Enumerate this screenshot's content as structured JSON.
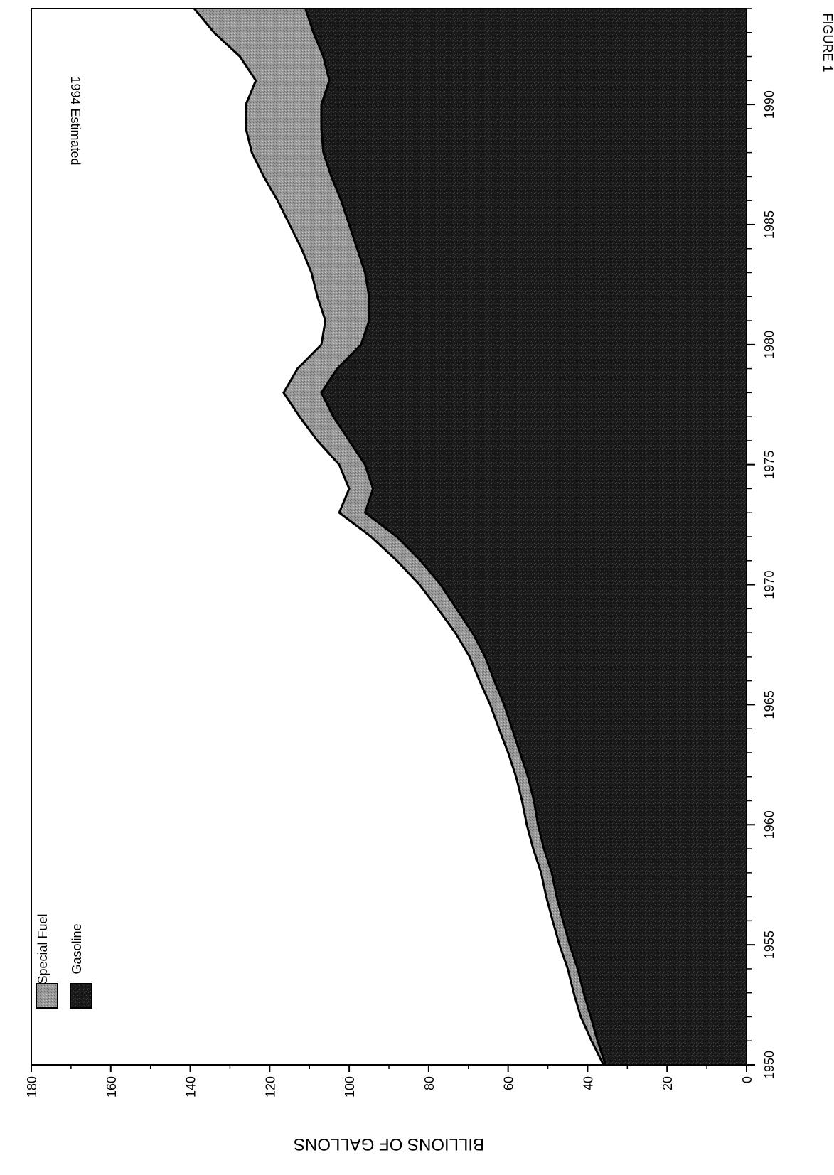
{
  "chart_data": {
    "type": "area",
    "stacked": true,
    "orientation": "rotated-90-clockwise",
    "figure_label": "FIGURE 1",
    "title": "",
    "annotation": "1994 Estimated",
    "xlabel": "",
    "ylabel": "BILLIONS OF GALLONS",
    "xlim": [
      1950,
      1994
    ],
    "ylim": [
      0,
      180
    ],
    "x_ticks": [
      1950,
      1955,
      1960,
      1965,
      1970,
      1975,
      1980,
      1985,
      1990
    ],
    "y_ticks": [
      0,
      20,
      40,
      60,
      80,
      100,
      120,
      140,
      160,
      180
    ],
    "grid": false,
    "legend_placement": "top-left",
    "x": [
      1950,
      1951,
      1952,
      1953,
      1954,
      1955,
      1956,
      1957,
      1958,
      1959,
      1960,
      1961,
      1962,
      1963,
      1964,
      1965,
      1966,
      1967,
      1968,
      1969,
      1970,
      1971,
      1972,
      1973,
      1974,
      1975,
      1976,
      1977,
      1978,
      1979,
      1980,
      1981,
      1982,
      1983,
      1984,
      1985,
      1986,
      1987,
      1988,
      1989,
      1990,
      1991,
      1992,
      1993,
      1994
    ],
    "series": [
      {
        "name": "Gasoline",
        "color": "#1a1a1a",
        "values": [
          35.5,
          37.5,
          39.2,
          41,
          42.5,
          44.5,
          46.2,
          47.8,
          49,
          51,
          52.5,
          53.5,
          55,
          57,
          59,
          61,
          63.5,
          65.8,
          69,
          73,
          77,
          82,
          88,
          96,
          94,
          96,
          100,
          104,
          107,
          103,
          97,
          95,
          95,
          96,
          98,
          100,
          102,
          104.5,
          106.5,
          107,
          107,
          105,
          106.5,
          109,
          111
        ]
      },
      {
        "name": "Special Fuel",
        "color": "#9a9a9a",
        "values": [
          0.5,
          1.5,
          2.5,
          2.5,
          2.5,
          2.6,
          2.6,
          2.6,
          2.7,
          2.7,
          2.8,
          3,
          3,
          3,
          3.3,
          3.5,
          3.7,
          3.9,
          4.3,
          4.7,
          5.3,
          6,
          6.5,
          6.5,
          6,
          6.5,
          8,
          8.5,
          9.5,
          10,
          10,
          11,
          13,
          13.5,
          14,
          15,
          16,
          17,
          18,
          19,
          19,
          18.5,
          21,
          25,
          28
        ]
      }
    ]
  }
}
